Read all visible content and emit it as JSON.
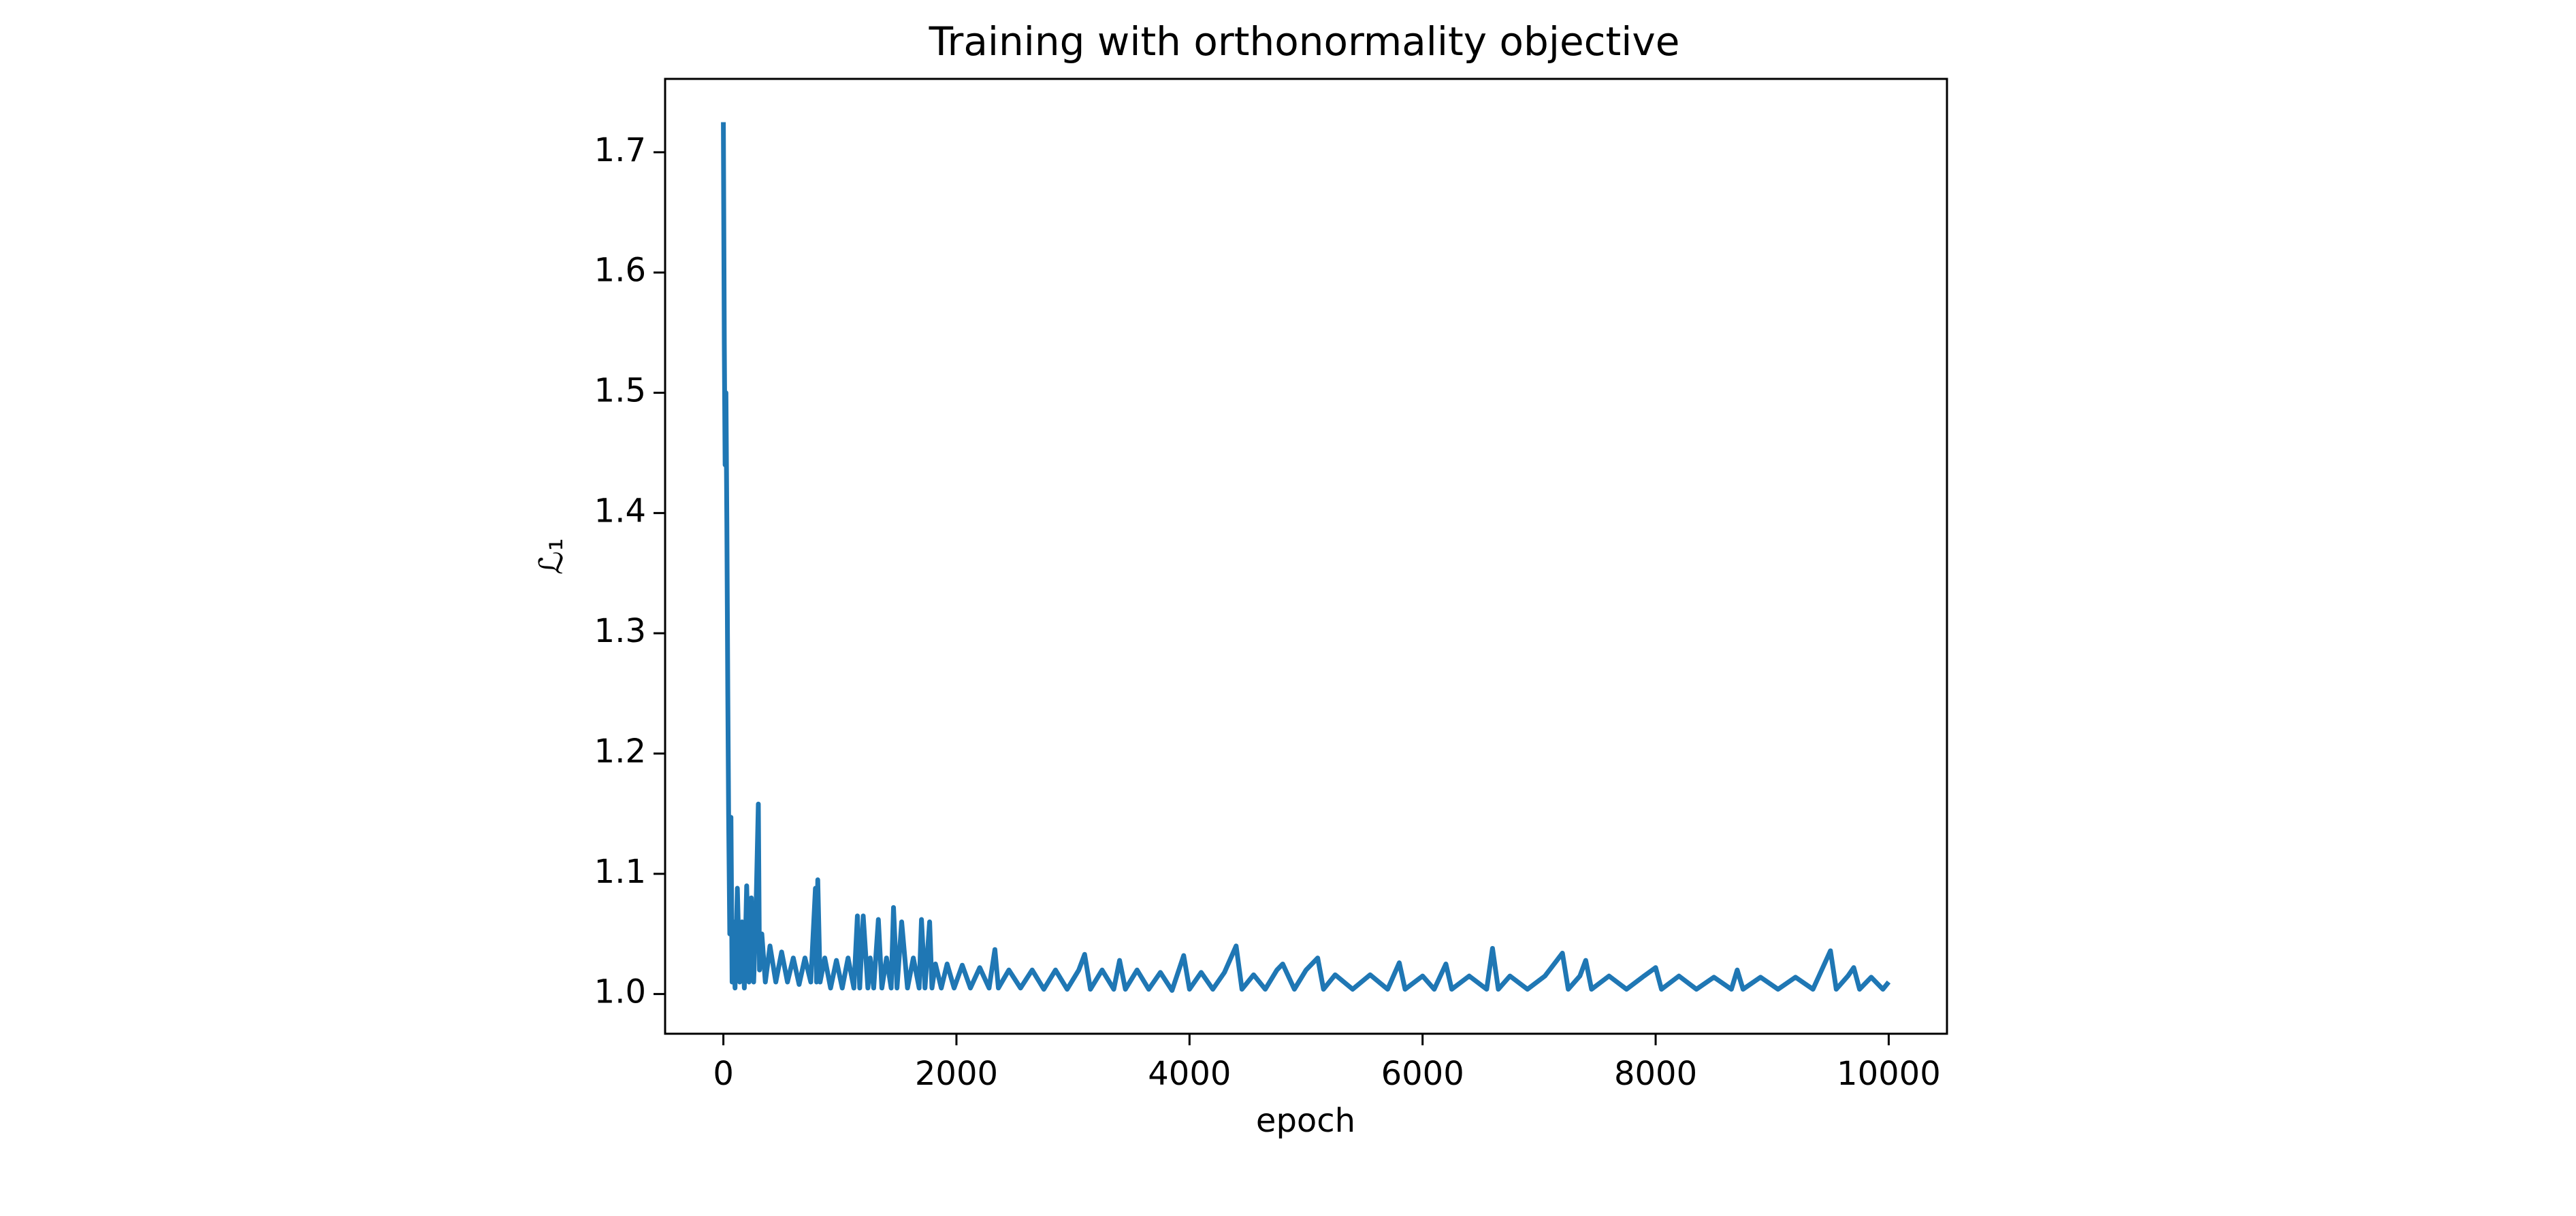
{
  "chart_data": {
    "type": "line",
    "title": "Training with orthonormality objective",
    "xlabel": "epoch",
    "ylabel": "ℒ₁",
    "xlim": [
      -500,
      10500
    ],
    "ylim": [
      0.967,
      1.761
    ],
    "xticks": [
      0,
      2000,
      4000,
      6000,
      8000,
      10000
    ],
    "yticks": [
      {
        "value": 1,
        "label": "1.0"
      },
      1.1,
      1.2,
      1.3,
      1.4,
      1.5,
      1.6,
      1.7
    ],
    "grid": false,
    "series": [
      {
        "color": "#1f77b4",
        "x": [
          0,
          8,
          15,
          22,
          30,
          38,
          45,
          55,
          65,
          75,
          85,
          100,
          120,
          140,
          160,
          180,
          200,
          220,
          240,
          260,
          280,
          300,
          310,
          330,
          360,
          400,
          450,
          500,
          550,
          600,
          650,
          700,
          750,
          790,
          800,
          810,
          830,
          870,
          920,
          970,
          1020,
          1070,
          1120,
          1150,
          1170,
          1200,
          1240,
          1260,
          1290,
          1330,
          1360,
          1400,
          1440,
          1460,
          1490,
          1530,
          1580,
          1630,
          1680,
          1700,
          1730,
          1770,
          1790,
          1820,
          1870,
          1920,
          1980,
          2050,
          2120,
          2200,
          2280,
          2330,
          2360,
          2450,
          2550,
          2650,
          2750,
          2850,
          2950,
          3050,
          3100,
          3150,
          3250,
          3350,
          3400,
          3450,
          3550,
          3650,
          3750,
          3850,
          3950,
          4000,
          4100,
          4200,
          4300,
          4400,
          4450,
          4550,
          4650,
          4750,
          4800,
          4900,
          5000,
          5100,
          5150,
          5250,
          5400,
          5550,
          5700,
          5800,
          5850,
          6000,
          6100,
          6200,
          6250,
          6400,
          6550,
          6600,
          6650,
          6750,
          6900,
          7050,
          7200,
          7250,
          7350,
          7400,
          7450,
          7600,
          7750,
          7900,
          8000,
          8050,
          8200,
          8350,
          8500,
          8650,
          8700,
          8750,
          8900,
          9050,
          9200,
          9350,
          9500,
          9550,
          9650,
          9700,
          9750,
          9850,
          9950,
          10000
        ],
        "values": [
          1.725,
          1.54,
          1.44,
          1.5,
          1.39,
          1.25,
          1.15,
          1.05,
          1.147,
          1.01,
          1.06,
          1.005,
          1.088,
          1.01,
          1.06,
          1.005,
          1.09,
          1.01,
          1.08,
          1.01,
          1.07,
          1.158,
          1.02,
          1.05,
          1.01,
          1.04,
          1.01,
          1.035,
          1.01,
          1.03,
          1.008,
          1.03,
          1.01,
          1.088,
          1.01,
          1.095,
          1.01,
          1.03,
          1.005,
          1.028,
          1.005,
          1.03,
          1.005,
          1.065,
          1.005,
          1.065,
          1.005,
          1.03,
          1.005,
          1.062,
          1.005,
          1.03,
          1.005,
          1.072,
          1.005,
          1.06,
          1.005,
          1.03,
          1.005,
          1.062,
          1.005,
          1.06,
          1.005,
          1.025,
          1.005,
          1.025,
          1.005,
          1.024,
          1.005,
          1.022,
          1.005,
          1.037,
          1.005,
          1.02,
          1.005,
          1.02,
          1.004,
          1.02,
          1.004,
          1.02,
          1.033,
          1.004,
          1.02,
          1.004,
          1.028,
          1.004,
          1.02,
          1.004,
          1.018,
          1.003,
          1.032,
          1.004,
          1.018,
          1.004,
          1.018,
          1.04,
          1.004,
          1.016,
          1.004,
          1.02,
          1.025,
          1.004,
          1.02,
          1.03,
          1.004,
          1.016,
          1.004,
          1.016,
          1.004,
          1.026,
          1.004,
          1.015,
          1.004,
          1.025,
          1.004,
          1.015,
          1.004,
          1.038,
          1.004,
          1.015,
          1.004,
          1.015,
          1.034,
          1.004,
          1.015,
          1.028,
          1.004,
          1.015,
          1.004,
          1.015,
          1.022,
          1.004,
          1.015,
          1.004,
          1.014,
          1.004,
          1.02,
          1.004,
          1.014,
          1.004,
          1.014,
          1.004,
          1.036,
          1.004,
          1.015,
          1.022,
          1.004,
          1.014,
          1.004,
          1.01
        ]
      }
    ]
  }
}
